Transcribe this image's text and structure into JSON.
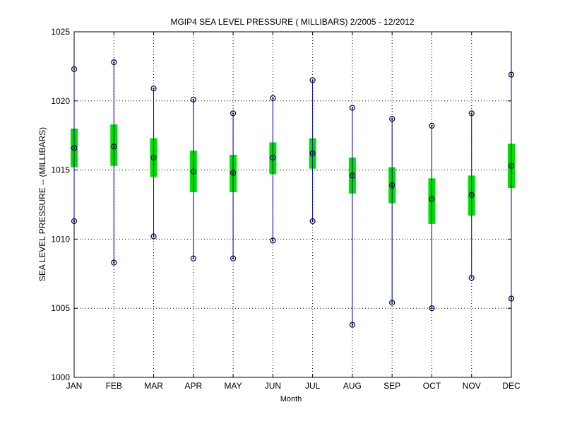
{
  "chart_data": {
    "type": "boxplot",
    "title": "MGIP4  SEA LEVEL PRESSURE ( MILLIBARS) 2/2005 - 12/2012",
    "xlabel": "Month",
    "ylabel": "SEA LEVEL PRESSURE -- (MILLIBARS)",
    "ylim": [
      1000,
      1025
    ],
    "yticks": [
      "1000",
      "1005",
      "1010",
      "1015",
      "1020",
      "1025"
    ],
    "grid": true,
    "colors": {
      "whisker": "#0000a0",
      "box": "#00e000",
      "marker": "#000040"
    },
    "categories": [
      "JAN",
      "FEB",
      "MAR",
      "APR",
      "MAY",
      "JUN",
      "JUL",
      "AUG",
      "SEP",
      "OCT",
      "NOV",
      "DEC"
    ],
    "series": [
      {
        "stat": "max",
        "values": [
          1022.3,
          1022.8,
          1020.9,
          1020.1,
          1019.1,
          1020.2,
          1021.5,
          1019.5,
          1018.7,
          1018.2,
          1019.1,
          1021.9
        ]
      },
      {
        "stat": "upper_box",
        "values": [
          1018.0,
          1018.3,
          1017.3,
          1016.4,
          1016.1,
          1017.0,
          1017.3,
          1015.9,
          1015.2,
          1014.4,
          1014.6,
          1016.9
        ]
      },
      {
        "stat": "mean",
        "values": [
          1016.6,
          1016.7,
          1015.9,
          1014.9,
          1014.8,
          1015.9,
          1016.2,
          1014.6,
          1013.9,
          1012.9,
          1013.2,
          1015.3
        ]
      },
      {
        "stat": "lower_box",
        "values": [
          1015.2,
          1015.3,
          1014.5,
          1013.4,
          1013.4,
          1014.7,
          1015.1,
          1013.3,
          1012.6,
          1011.1,
          1011.7,
          1013.7
        ]
      },
      {
        "stat": "min",
        "values": [
          1011.3,
          1008.3,
          1010.2,
          1008.6,
          1008.6,
          1009.9,
          1011.3,
          1003.8,
          1005.4,
          1005.0,
          1007.2,
          1005.7
        ]
      }
    ]
  }
}
